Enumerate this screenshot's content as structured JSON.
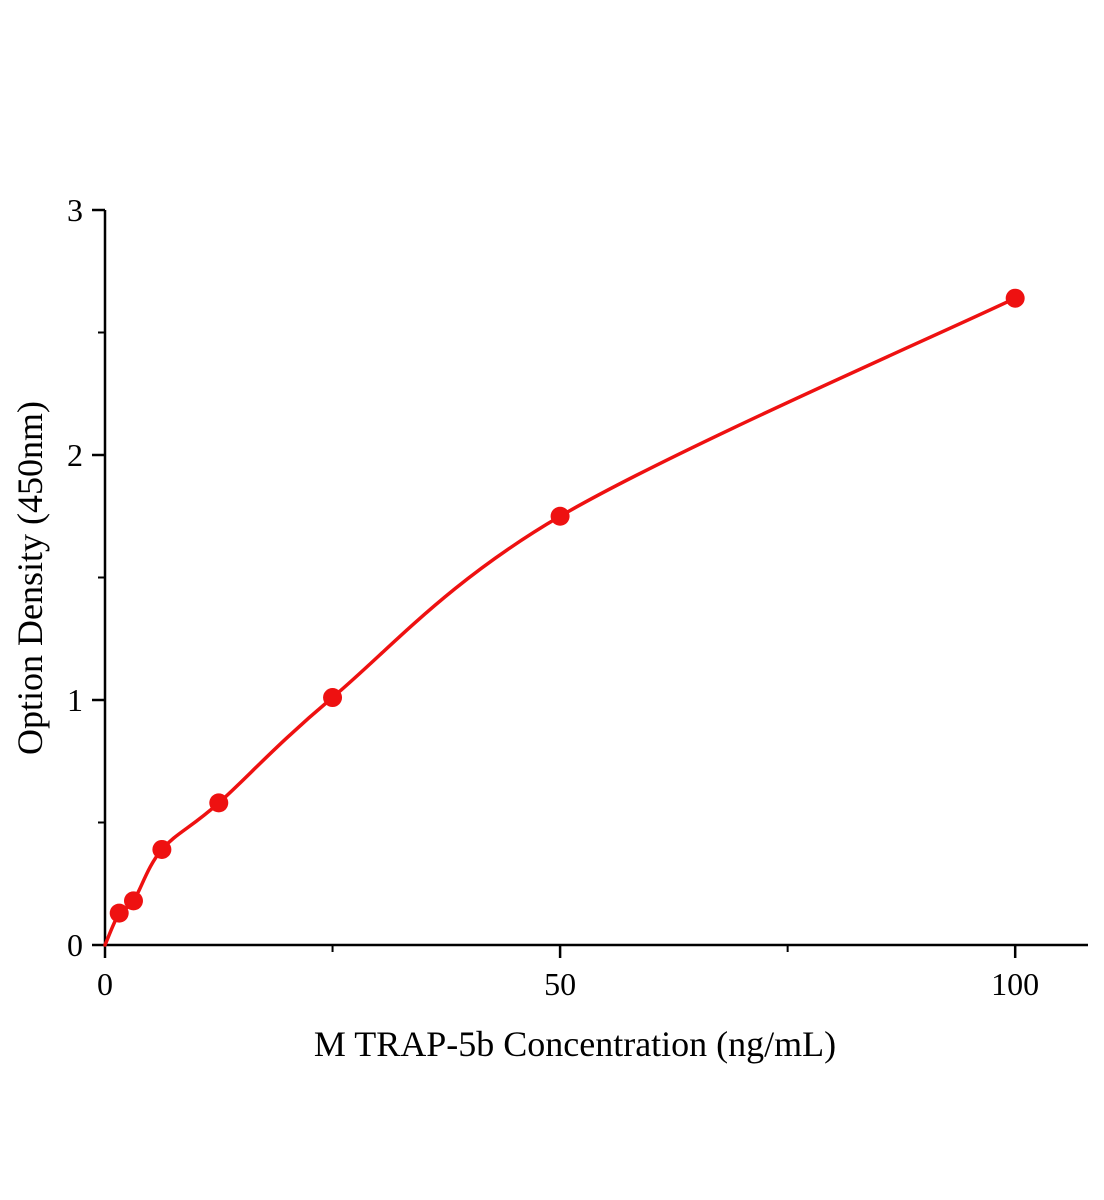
{
  "chart_data": {
    "type": "scatter",
    "title": "",
    "xlabel": "M TRAP-5b  Concentration (ng/mL)",
    "ylabel": "Option Density (450nm)",
    "x": [
      1.56,
      3.13,
      6.25,
      12.5,
      25,
      50,
      100
    ],
    "y": [
      0.13,
      0.18,
      0.39,
      0.58,
      1.01,
      1.75,
      2.64
    ],
    "curve_start": [
      0,
      0
    ],
    "xlim": [
      0,
      108
    ],
    "ylim": [
      0,
      3
    ],
    "x_major_ticks": [
      0,
      50,
      100
    ],
    "x_minor_ticks": [
      25,
      75
    ],
    "y_major_ticks": [
      0,
      1,
      2,
      3
    ],
    "y_minor_ticks": [
      0.5,
      1.5,
      2.5
    ],
    "grid": false,
    "legend_position": "none",
    "line_color": "#ee1111",
    "marker_color": "#ee1111",
    "axis_color": "#000000",
    "marker_radius": 9.5,
    "line_width": 3.5
  }
}
